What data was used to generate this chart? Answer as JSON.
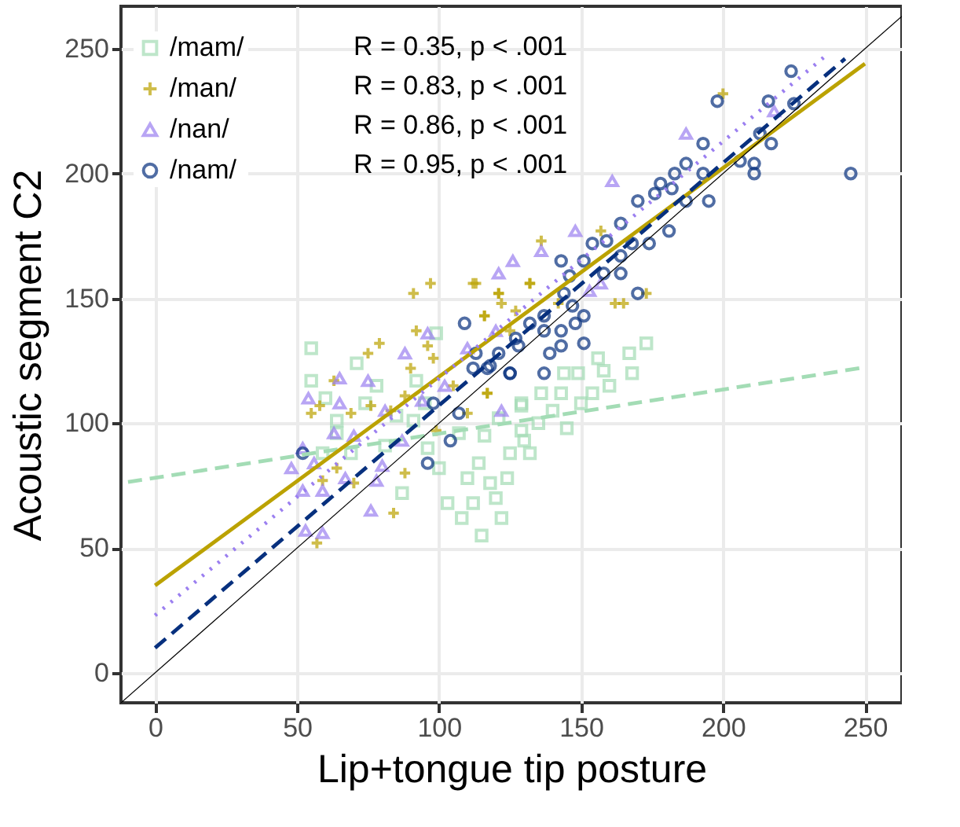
{
  "chart_data": {
    "type": "scatter",
    "xlabel": "Lip+tongue tip posture",
    "ylabel": "Acoustic segment C2",
    "xlim": [
      -12,
      263
    ],
    "ylim": [
      -12,
      267
    ],
    "xticks": [
      0,
      50,
      100,
      150,
      200,
      250
    ],
    "yticks": [
      0,
      50,
      100,
      150,
      200,
      250
    ],
    "grid": true,
    "legend": "top left",
    "annotations": [
      "R = 0.35, p < .001",
      "R = 0.83, p < .001",
      "R = 0.86, p < .001",
      "R = 0.95, p < .001"
    ],
    "series": [
      {
        "type": "scatter",
        "name": "/mam/",
        "color": "#a3dcb5",
        "marker": "square",
        "x": [
          71,
          99,
          55,
          92,
          74,
          64,
          64,
          69,
          87,
          103,
          112,
          59,
          81,
          91,
          107,
          114,
          118,
          124,
          116,
          129,
          132,
          121,
          129,
          96,
          173,
          167,
          156,
          158,
          168,
          149,
          144,
          143,
          154,
          136,
          129,
          55,
          60,
          78,
          85,
          95,
          100,
          108,
          115,
          120,
          125,
          130,
          135,
          140,
          145,
          150,
          160,
          110,
          122
        ],
        "values": [
          124,
          136,
          117,
          117,
          108,
          101,
          96,
          88,
          72,
          68,
          68,
          88,
          91,
          101,
          96,
          84,
          76,
          78,
          95,
          107,
          88,
          102,
          97,
          90,
          132,
          128,
          126,
          121,
          120,
          120,
          120,
          112,
          112,
          112,
          108,
          130,
          110,
          115,
          103,
          108,
          82,
          62,
          55,
          70,
          88,
          93,
          100,
          105,
          98,
          108,
          115,
          78,
          62
        ]
      },
      {
        "type": "scatter",
        "name": "/man/",
        "color": "#bba200",
        "marker": "cross",
        "x": [
          200,
          157,
          136,
          132,
          116,
          121,
          113,
          142,
          162,
          165,
          173,
          125,
          117,
          127,
          91,
          97,
          112,
          121,
          132,
          116,
          122,
          79,
          75,
          92,
          96,
          63,
          55,
          76,
          83,
          88,
          105,
          117,
          110,
          99,
          59,
          70,
          88,
          84,
          57,
          64,
          98,
          69,
          90,
          58
        ],
        "values": [
          232,
          177,
          173,
          156,
          143,
          152,
          156,
          148,
          148,
          148,
          152,
          137,
          112,
          145,
          152,
          156,
          156,
          152,
          156,
          143,
          148,
          132,
          128,
          137,
          131,
          117,
          104,
          107,
          105,
          111,
          115,
          112,
          104,
          97,
          77,
          76,
          80,
          64,
          52,
          82,
          126,
          104,
          122,
          107
        ]
      },
      {
        "type": "scatter",
        "name": "/nan/",
        "color": "#9b7ff0",
        "marker": "triangle",
        "x": [
          187,
          161,
          148,
          136,
          126,
          121,
          157,
          153,
          120,
          218,
          96,
          88,
          75,
          65,
          54,
          65,
          63,
          52,
          56,
          52,
          59,
          76,
          59,
          53,
          78,
          87,
          80,
          102,
          110,
          122,
          70,
          81,
          94,
          67,
          48
        ],
        "values": [
          216,
          197,
          177,
          169,
          165,
          160,
          156,
          153,
          137,
          225,
          136,
          128,
          117,
          118,
          110,
          108,
          96,
          90,
          84,
          73,
          73,
          65,
          56,
          57,
          77,
          93,
          83,
          115,
          130,
          105,
          95,
          105,
          109,
          78,
          82
        ]
      },
      {
        "type": "scatter",
        "name": "/nam/",
        "color": "#07307e",
        "marker": "circle",
        "x": [
          224,
          198,
          216,
          225,
          193,
          213,
          217,
          206,
          211,
          211,
          245,
          193,
          195,
          187,
          183,
          178,
          176,
          182,
          187,
          170,
          181,
          164,
          154,
          159,
          168,
          174,
          164,
          151,
          143,
          158,
          164,
          170,
          146,
          144,
          147,
          137,
          132,
          151,
          148,
          143,
          127,
          137,
          151,
          143,
          139,
          121,
          128,
          137,
          125,
          113,
          117,
          109,
          112,
          118,
          125,
          98,
          107,
          104,
          96,
          52
        ],
        "values": [
          241,
          229,
          229,
          228,
          212,
          216,
          212,
          205,
          204,
          200,
          200,
          200,
          189,
          204,
          200,
          196,
          192,
          194,
          189,
          189,
          177,
          180,
          172,
          173,
          172,
          172,
          167,
          165,
          165,
          160,
          160,
          152,
          159,
          152,
          147,
          143,
          140,
          143,
          140,
          137,
          134,
          137,
          132,
          131,
          128,
          128,
          131,
          120,
          120,
          128,
          122,
          140,
          122,
          123,
          120,
          108,
          104,
          93,
          84,
          88
        ]
      },
      {
        "type": "line",
        "color": "#a3dcb5",
        "line_style": "dashed",
        "x": [
          248,
          -12
        ],
        "values": [
          122,
          76
        ]
      },
      {
        "type": "line",
        "color": "#bba200",
        "line_style": "solid",
        "x": [
          0,
          250
        ],
        "values": [
          35,
          244
        ]
      },
      {
        "type": "line",
        "color": "#9b7ff0",
        "line_style": "dotted",
        "x": [
          0,
          236
        ],
        "values": [
          23,
          247
        ]
      },
      {
        "type": "line",
        "color": "#07307e",
        "line_style": "dashed",
        "x": [
          0,
          243
        ],
        "values": [
          10,
          246
        ]
      },
      {
        "type": "line",
        "color": "#000000",
        "line_style": "solid",
        "x": [
          -12,
          263
        ],
        "values": [
          -12,
          263
        ]
      }
    ]
  }
}
